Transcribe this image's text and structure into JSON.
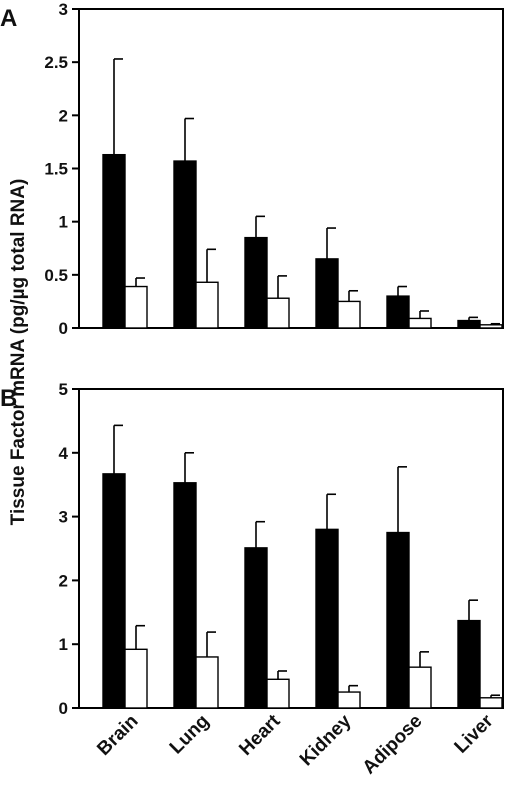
{
  "chart_data": [
    {
      "type": "bar",
      "panel_label": "A",
      "categories": [
        "Brain",
        "Lung",
        "Heart",
        "Kidney",
        "Adipose",
        "Liver"
      ],
      "series": [
        {
          "fill": "#000000",
          "values": [
            1.63,
            1.57,
            0.85,
            0.65,
            0.3,
            0.07
          ],
          "errors": [
            0.9,
            0.4,
            0.2,
            0.29,
            0.09,
            0.03
          ]
        },
        {
          "fill": "#ffffff",
          "values": [
            0.39,
            0.43,
            0.28,
            0.25,
            0.09,
            0.03
          ],
          "errors": [
            0.08,
            0.31,
            0.21,
            0.1,
            0.07,
            0.01
          ]
        }
      ],
      "ylim": [
        0,
        3
      ],
      "yticks": [
        "0",
        "0.5",
        "1",
        "1.5",
        "2",
        "2.5",
        "3"
      ]
    },
    {
      "type": "bar",
      "panel_label": "B",
      "categories": [
        "Brain",
        "Lung",
        "Heart",
        "Kidney",
        "Adipose",
        "Liver"
      ],
      "series": [
        {
          "fill": "#000000",
          "values": [
            3.67,
            3.53,
            2.51,
            2.8,
            2.75,
            1.37
          ],
          "errors": [
            0.76,
            0.47,
            0.41,
            0.55,
            1.03,
            0.32
          ]
        },
        {
          "fill": "#ffffff",
          "values": [
            0.92,
            0.8,
            0.45,
            0.25,
            0.64,
            0.16
          ],
          "errors": [
            0.37,
            0.39,
            0.13,
            0.1,
            0.24,
            0.04
          ]
        }
      ],
      "ylim": [
        0,
        5
      ],
      "yticks": [
        "0",
        "1",
        "2",
        "3",
        "4",
        "5"
      ]
    }
  ],
  "ylabel": "Tissue Factor mRNA (pg/µg total RNA)"
}
